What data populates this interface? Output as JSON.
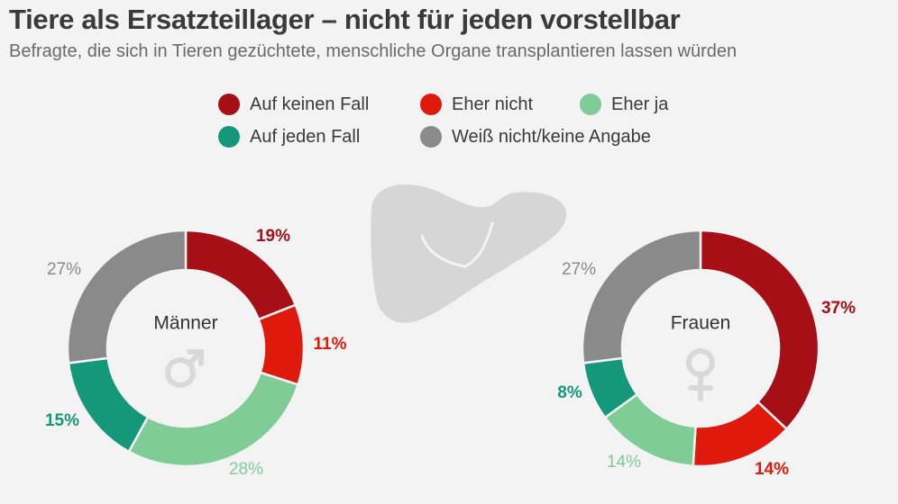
{
  "title": "Tiere als Ersatzteillager – nicht für jeden vorstellbar",
  "subtitle": "Befragte, die sich in Tieren gezüchtete, menschliche Organe transplantieren lassen würden",
  "colors": {
    "auf_keinen_fall": "#a50f15",
    "eher_nicht": "#e0190d",
    "eher_ja": "#7fcc96",
    "auf_jeden_fall": "#15987a",
    "weiss_nicht": "#8a8a8a",
    "organ": "#d6d6d6",
    "gender_symbol": "#d9d9d9",
    "center_label": "#333333"
  },
  "legend": [
    {
      "label": "Auf keinen Fall",
      "color": "#a50f15"
    },
    {
      "label": "Eher nicht",
      "color": "#e0190d"
    },
    {
      "label": "Eher ja",
      "color": "#7fcc96"
    },
    {
      "label": "Auf jeden Fall",
      "color": "#15987a"
    },
    {
      "label": "Weiß nicht/keine Angabe",
      "color": "#8a8a8a"
    }
  ],
  "icons": [
    "liver-icon",
    "male-symbol-icon",
    "female-symbol-icon"
  ],
  "chart_data": [
    {
      "type": "pie",
      "variant": "donut",
      "center_label": "Männer",
      "center_icon": "male-symbol-icon",
      "categories": [
        "Auf keinen Fall",
        "Eher nicht",
        "Eher ja",
        "Auf jeden Fall",
        "Weiß nicht/keine Angabe"
      ],
      "values": [
        19,
        11,
        28,
        15,
        27
      ],
      "value_labels": [
        "19%",
        "11%",
        "28%",
        "15%",
        "27%"
      ],
      "label_colors": [
        "#a50f15",
        "#e0190d",
        "#7fcc96",
        "#15987a",
        "#8a8a8a"
      ]
    },
    {
      "type": "pie",
      "variant": "donut",
      "center_label": "Frauen",
      "center_icon": "female-symbol-icon",
      "categories": [
        "Auf keinen Fall",
        "Eher nicht",
        "Eher ja",
        "Auf jeden Fall",
        "Weiß nicht/keine Angabe"
      ],
      "values": [
        37,
        14,
        14,
        8,
        27
      ],
      "value_labels": [
        "37%",
        "14%",
        "14%",
        "8%",
        "27%"
      ],
      "label_colors": [
        "#a50f15",
        "#e0190d",
        "#7fcc96",
        "#15987a",
        "#8a8a8a"
      ]
    }
  ]
}
